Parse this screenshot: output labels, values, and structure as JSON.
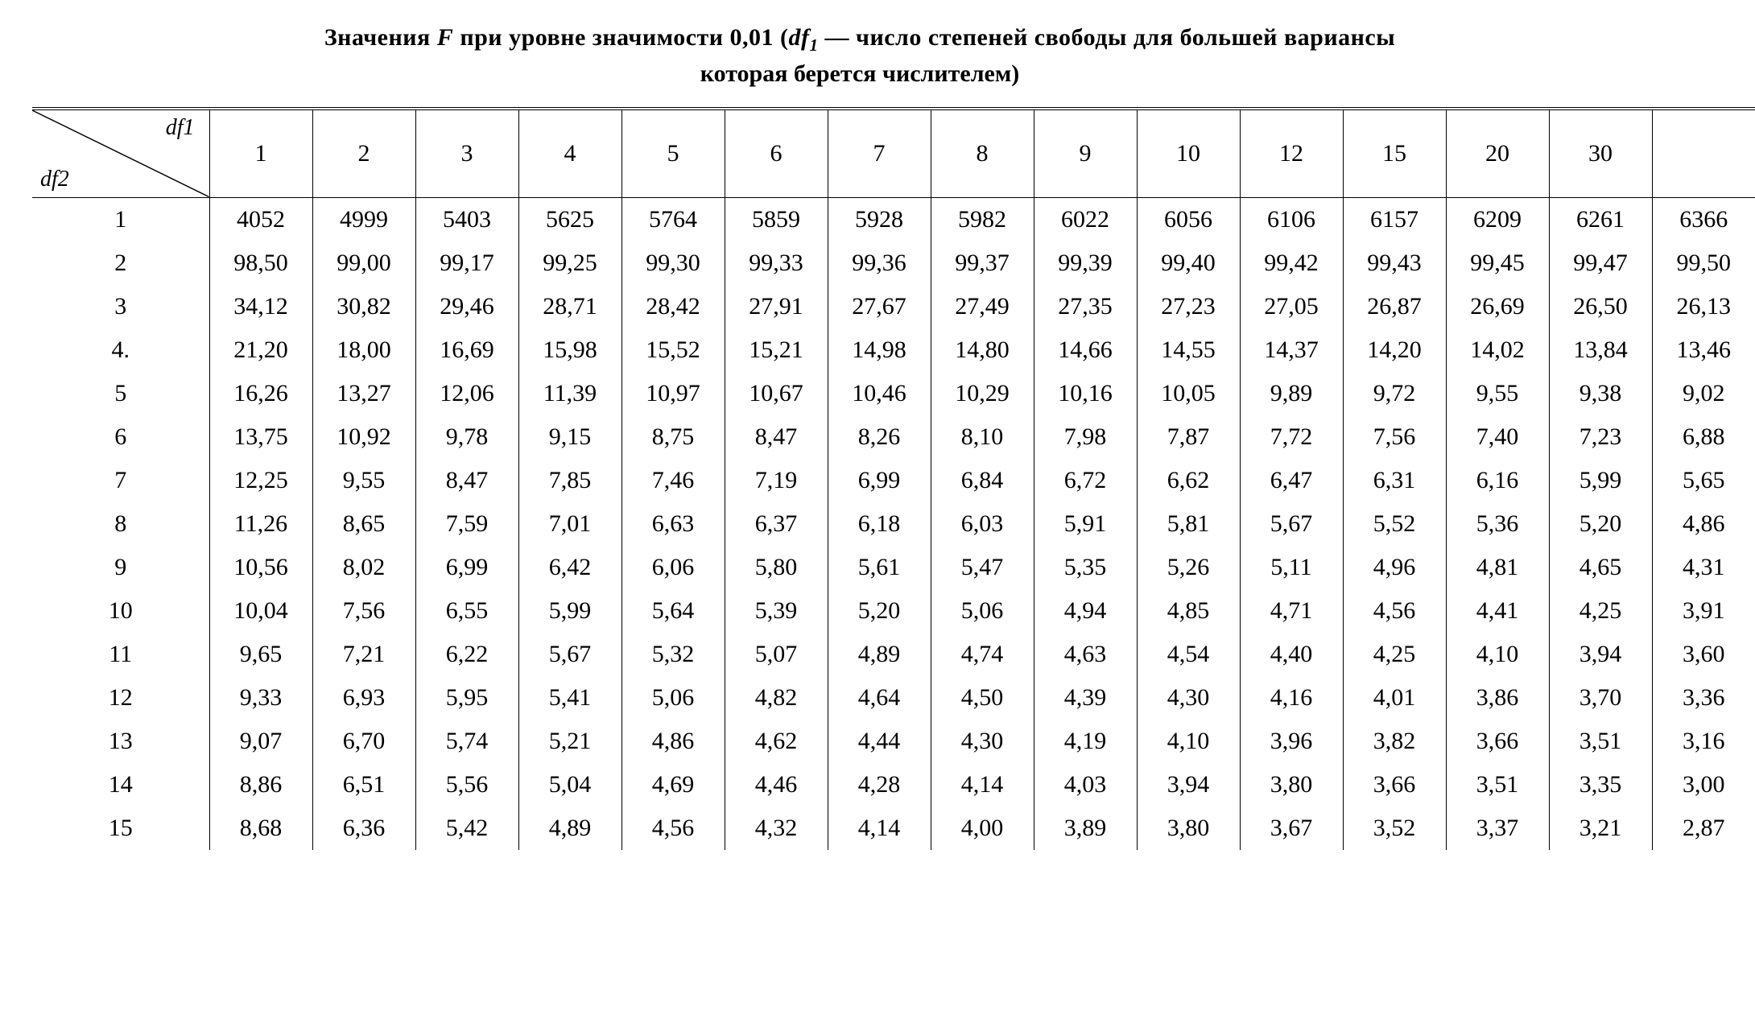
{
  "title_parts": {
    "prefix": "Значения ",
    "F": "F",
    "mid1": " при уровне значимости 0,01 (",
    "df1": "df",
    "df1_sub": "1",
    "mid2": " — число степеней свободы для большей вариансы",
    "line2": "которая берется числителем)"
  },
  "corner": {
    "top_label": "df",
    "top_sub": "1",
    "bottom_label": "df",
    "bottom_sub": "2"
  },
  "table": {
    "type": "table",
    "background_color": "#ffffff",
    "text_color": "#000000",
    "border_color": "#000000",
    "font_family": "Times New Roman",
    "header_fontsize": 30,
    "cell_fontsize": 30,
    "columns": [
      "1",
      "2",
      "3",
      "4",
      "5",
      "6",
      "7",
      "8",
      "9",
      "10",
      "12",
      "15",
      "20",
      "30",
      ""
    ],
    "row_labels": [
      "1",
      "2",
      "3",
      "4.",
      "5",
      "6",
      "7",
      "8",
      "9",
      "10",
      "11",
      "12",
      "13",
      "14",
      "15"
    ],
    "rows": [
      [
        "4052",
        "4999",
        "5403",
        "5625",
        "5764",
        "5859",
        "5928",
        "5982",
        "6022",
        "6056",
        "6106",
        "6157",
        "6209",
        "6261",
        "6366"
      ],
      [
        "98,50",
        "99,00",
        "99,17",
        "99,25",
        "99,30",
        "99,33",
        "99,36",
        "99,37",
        "99,39",
        "99,40",
        "99,42",
        "99,43",
        "99,45",
        "99,47",
        "99,50"
      ],
      [
        "34,12",
        "30,82",
        "29,46",
        "28,71",
        "28,42",
        "27,91",
        "27,67",
        "27,49",
        "27,35",
        "27,23",
        "27,05",
        "26,87",
        "26,69",
        "26,50",
        "26,13"
      ],
      [
        "21,20",
        "18,00",
        "16,69",
        "15,98",
        "15,52",
        "15,21",
        "14,98",
        "14,80",
        "14,66",
        "14,55",
        "14,37",
        "14,20",
        "14,02",
        "13,84",
        "13,46"
      ],
      [
        "16,26",
        "13,27",
        "12,06",
        "11,39",
        "10,97",
        "10,67",
        "10,46",
        "10,29",
        "10,16",
        "10,05",
        "9,89",
        "9,72",
        "9,55",
        "9,38",
        "9,02"
      ],
      [
        "13,75",
        "10,92",
        "9,78",
        "9,15",
        "8,75",
        "8,47",
        "8,26",
        "8,10",
        "7,98",
        "7,87",
        "7,72",
        "7,56",
        "7,40",
        "7,23",
        "6,88"
      ],
      [
        "12,25",
        "9,55",
        "8,47",
        "7,85",
        "7,46",
        "7,19",
        "6,99",
        "6,84",
        "6,72",
        "6,62",
        "6,47",
        "6,31",
        "6,16",
        "5,99",
        "5,65"
      ],
      [
        "11,26",
        "8,65",
        "7,59",
        "7,01",
        "6,63",
        "6,37",
        "6,18",
        "6,03",
        "5,91",
        "5,81",
        "5,67",
        "5,52",
        "5,36",
        "5,20",
        "4,86"
      ],
      [
        "10,56",
        "8,02",
        "6,99",
        "6,42",
        "6,06",
        "5,80",
        "5,61",
        "5,47",
        "5,35",
        "5,26",
        "5,11",
        "4,96",
        "4,81",
        "4,65",
        "4,31"
      ],
      [
        "10,04",
        "7,56",
        "6,55",
        "5,99",
        "5,64",
        "5,39",
        "5,20",
        "5,06",
        "4,94",
        "4,85",
        "4,71",
        "4,56",
        "4,41",
        "4,25",
        "3,91"
      ],
      [
        "9,65",
        "7,21",
        "6,22",
        "5,67",
        "5,32",
        "5,07",
        "4,89",
        "4,74",
        "4,63",
        "4,54",
        "4,40",
        "4,25",
        "4,10",
        "3,94",
        "3,60"
      ],
      [
        "9,33",
        "6,93",
        "5,95",
        "5,41",
        "5,06",
        "4,82",
        "4,64",
        "4,50",
        "4,39",
        "4,30",
        "4,16",
        "4,01",
        "3,86",
        "3,70",
        "3,36"
      ],
      [
        "9,07",
        "6,70",
        "5,74",
        "5,21",
        "4,86",
        "4,62",
        "4,44",
        "4,30",
        "4,19",
        "4,10",
        "3,96",
        "3,82",
        "3,66",
        "3,51",
        "3,16"
      ],
      [
        "8,86",
        "6,51",
        "5,56",
        "5,04",
        "4,69",
        "4,46",
        "4,28",
        "4,14",
        "4,03",
        "3,94",
        "3,80",
        "3,66",
        "3,51",
        "3,35",
        "3,00"
      ],
      [
        "8,68",
        "6,36",
        "5,42",
        "4,89",
        "4,56",
        "4,32",
        "4,14",
        "4,00",
        "3,89",
        "3,80",
        "3,67",
        "3,52",
        "3,37",
        "3,21",
        "2,87"
      ]
    ],
    "col_widths": {
      "label_col": 220,
      "data_col": 128
    }
  }
}
